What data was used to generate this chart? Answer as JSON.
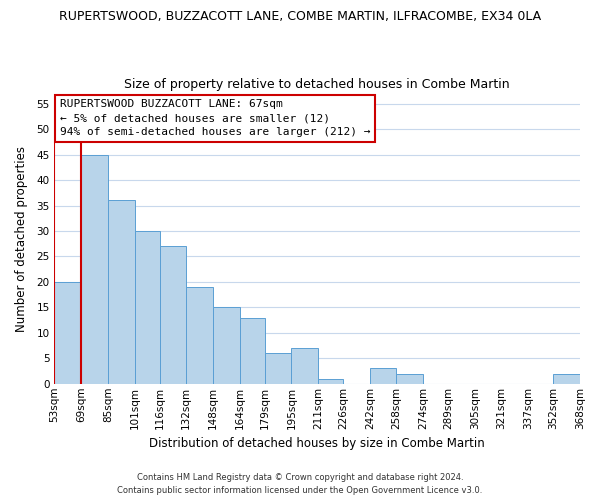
{
  "title": "RUPERTSWOOD, BUZZACOTT LANE, COMBE MARTIN, ILFRACOMBE, EX34 0LA",
  "subtitle": "Size of property relative to detached houses in Combe Martin",
  "xlabel": "Distribution of detached houses by size in Combe Martin",
  "ylabel": "Number of detached properties",
  "bins": [
    53,
    69,
    85,
    101,
    116,
    132,
    148,
    164,
    179,
    195,
    211,
    226,
    242,
    258,
    274,
    289,
    305,
    321,
    337,
    352,
    368
  ],
  "counts": [
    20,
    45,
    36,
    30,
    27,
    19,
    15,
    13,
    6,
    7,
    1,
    0,
    3,
    2,
    0,
    0,
    0,
    0,
    0,
    2
  ],
  "bar_color": "#b8d4ea",
  "bar_edge_color": "#5a9fd4",
  "highlight_bar_color": "#cc0000",
  "highlight_bin_index": 0,
  "vline_x": 69,
  "annotation_text_line1": "RUPERTSWOOD BUZZACOTT LANE: 67sqm",
  "annotation_text_line2": "← 5% of detached houses are smaller (12)",
  "annotation_text_line3": "94% of semi-detached houses are larger (212) →",
  "annotation_box_color": "#ffffff",
  "annotation_box_edge_color": "#cc0000",
  "ylim": [
    0,
    57
  ],
  "yticks": [
    0,
    5,
    10,
    15,
    20,
    25,
    30,
    35,
    40,
    45,
    50,
    55
  ],
  "footer_line1": "Contains HM Land Registry data © Crown copyright and database right 2024.",
  "footer_line2": "Contains public sector information licensed under the Open Government Licence v3.0.",
  "bg_color": "#ffffff",
  "grid_color": "#c8d8ec",
  "tick_labels": [
    "53sqm",
    "69sqm",
    "85sqm",
    "101sqm",
    "116sqm",
    "132sqm",
    "148sqm",
    "164sqm",
    "179sqm",
    "195sqm",
    "211sqm",
    "226sqm",
    "242sqm",
    "258sqm",
    "274sqm",
    "289sqm",
    "305sqm",
    "321sqm",
    "337sqm",
    "352sqm",
    "368sqm"
  ],
  "title_fontsize": 9,
  "subtitle_fontsize": 9,
  "axis_label_fontsize": 8.5,
  "tick_fontsize": 7.5,
  "annotation_fontsize": 8,
  "footer_fontsize": 6
}
